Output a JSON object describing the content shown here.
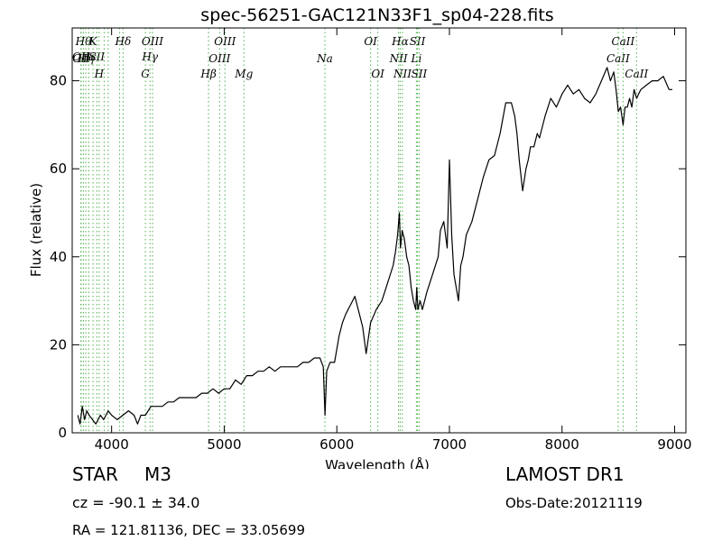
{
  "chart_data": {
    "type": "line",
    "title": "spec-56251-GAC121N33F1_sp04-228.fits",
    "xlabel": "Wavelength (Å)",
    "ylabel": "Flux (relative)",
    "xlim": [
      3650,
      9100
    ],
    "ylim": [
      0,
      92
    ],
    "xticks": [
      4000,
      5000,
      6000,
      7000,
      8000,
      9000
    ],
    "yticks": [
      0,
      20,
      40,
      60,
      80
    ],
    "grid": false,
    "line_color": "#000000",
    "marker_color": "#5cb85c",
    "series": [
      {
        "x": [
          3700,
          3720,
          3740,
          3760,
          3780,
          3800,
          3830,
          3860,
          3900,
          3930,
          3970,
          4000,
          4050,
          4100,
          4150,
          4200,
          4230,
          4260,
          4300,
          4350,
          4400,
          4450,
          4500,
          4550,
          4600,
          4650,
          4700,
          4750,
          4800,
          4850,
          4900,
          4950,
          5000,
          5050,
          5100,
          5150,
          5200,
          5250,
          5300,
          5350,
          5400,
          5450,
          5500,
          5550,
          5600,
          5650,
          5700,
          5750,
          5800,
          5850,
          5880,
          5895,
          5910,
          5940,
          5980,
          6020,
          6050,
          6080,
          6100,
          6120,
          6140,
          6160,
          6180,
          6200,
          6230,
          6260,
          6300,
          6350,
          6400,
          6450,
          6500,
          6520,
          6540,
          6555,
          6565,
          6580,
          6600,
          6620,
          6640,
          6660,
          6680,
          6700,
          6710,
          6720,
          6740,
          6760,
          6800,
          6850,
          6900,
          6920,
          6950,
          6980,
          7000,
          7020,
          7040,
          7060,
          7080,
          7100,
          7120,
          7150,
          7200,
          7250,
          7300,
          7350,
          7400,
          7450,
          7500,
          7550,
          7580,
          7600,
          7620,
          7650,
          7680,
          7700,
          7720,
          7750,
          7780,
          7800,
          7850,
          7900,
          7950,
          8000,
          8050,
          8100,
          8150,
          8200,
          8250,
          8300,
          8350,
          8400,
          8430,
          8460,
          8480,
          8500,
          8520,
          8542,
          8560,
          8580,
          8600,
          8620,
          8640,
          8662,
          8680,
          8700,
          8750,
          8800,
          8850,
          8900,
          8950,
          8980
        ],
        "y": [
          4,
          2,
          6,
          3,
          5,
          4,
          3,
          2,
          4,
          3,
          5,
          4,
          3,
          4,
          5,
          4,
          2,
          4,
          4,
          6,
          6,
          6,
          7,
          7,
          8,
          8,
          8,
          8,
          9,
          9,
          10,
          9,
          10,
          10,
          12,
          11,
          13,
          13,
          14,
          14,
          15,
          14,
          15,
          15,
          15,
          15,
          16,
          16,
          17,
          17,
          15,
          4,
          14,
          16,
          16,
          22,
          25,
          27,
          28,
          29,
          30,
          31,
          29,
          27,
          24,
          18,
          25,
          28,
          30,
          34,
          38,
          41,
          45,
          50,
          42,
          46,
          44,
          40,
          38,
          33,
          30,
          28,
          33,
          28,
          30,
          28,
          32,
          36,
          40,
          46,
          48,
          42,
          62,
          45,
          36,
          33,
          30,
          38,
          40,
          45,
          48,
          53,
          58,
          62,
          63,
          68,
          75,
          75,
          72,
          68,
          62,
          55,
          60,
          62,
          65,
          65,
          68,
          67,
          72,
          76,
          74,
          77,
          79,
          77,
          78,
          76,
          75,
          77,
          80,
          83,
          80,
          82,
          78,
          73,
          74,
          70,
          74,
          74,
          76,
          74,
          78,
          76,
          77,
          78,
          79,
          80,
          80,
          81,
          78,
          78
        ]
      }
    ],
    "line_markers": [
      {
        "x": 3727,
        "label": "OII",
        "row": 2
      },
      {
        "x": 3730,
        "label": "OII",
        "row": 3
      },
      {
        "x": 3750,
        "label": "Hθ",
        "row": 1
      },
      {
        "x": 3771,
        "label": "Hη",
        "row": 3
      },
      {
        "x": 3798,
        "label": "Hε",
        "row": 2
      },
      {
        "x": 3835,
        "label": "K",
        "row": 1
      },
      {
        "x": 3869,
        "label": "SII",
        "row": 2
      },
      {
        "x": 3889,
        "label": "H",
        "row": 4
      },
      {
        "x": 3934,
        "label": "",
        "row": 0
      },
      {
        "x": 3969,
        "label": "",
        "row": 0
      },
      {
        "x": 4071,
        "label": "",
        "row": 0
      },
      {
        "x": 4102,
        "label": "Hδ",
        "row": 1
      },
      {
        "x": 4300,
        "label": "G",
        "row": 4
      },
      {
        "x": 4341,
        "label": "Hγ",
        "row": 2
      },
      {
        "x": 4363,
        "label": "OIII",
        "row": 1
      },
      {
        "x": 4861,
        "label": "Hβ",
        "row": 4
      },
      {
        "x": 4959,
        "label": "OIII",
        "row": 3
      },
      {
        "x": 5007,
        "label": "OIII",
        "row": 1
      },
      {
        "x": 5175,
        "label": "Mg",
        "row": 4
      },
      {
        "x": 5894,
        "label": "Na",
        "row": 3
      },
      {
        "x": 6300,
        "label": "OI",
        "row": 1
      },
      {
        "x": 6364,
        "label": "OI",
        "row": 4
      },
      {
        "x": 6548,
        "label": "NII",
        "row": 3
      },
      {
        "x": 6563,
        "label": "Hα",
        "row": 1
      },
      {
        "x": 6583,
        "label": "NII",
        "row": 4
      },
      {
        "x": 6707,
        "label": "Li",
        "row": 3
      },
      {
        "x": 6716,
        "label": "SII",
        "row": 1
      },
      {
        "x": 6731,
        "label": "SII",
        "row": 4
      },
      {
        "x": 8498,
        "label": "CaII",
        "row": 3
      },
      {
        "x": 8542,
        "label": "CaII",
        "row": 1
      },
      {
        "x": 8662,
        "label": "CaII",
        "row": 4
      }
    ]
  },
  "info": {
    "object_class": "STAR",
    "subclass": "M3",
    "cz_text": "cz = -90.1 ± 34.0",
    "survey": "LAMOST DR1",
    "obs_date": "Obs-Date:20121119",
    "coords": "RA = 121.81136, DEC = 33.05699"
  }
}
